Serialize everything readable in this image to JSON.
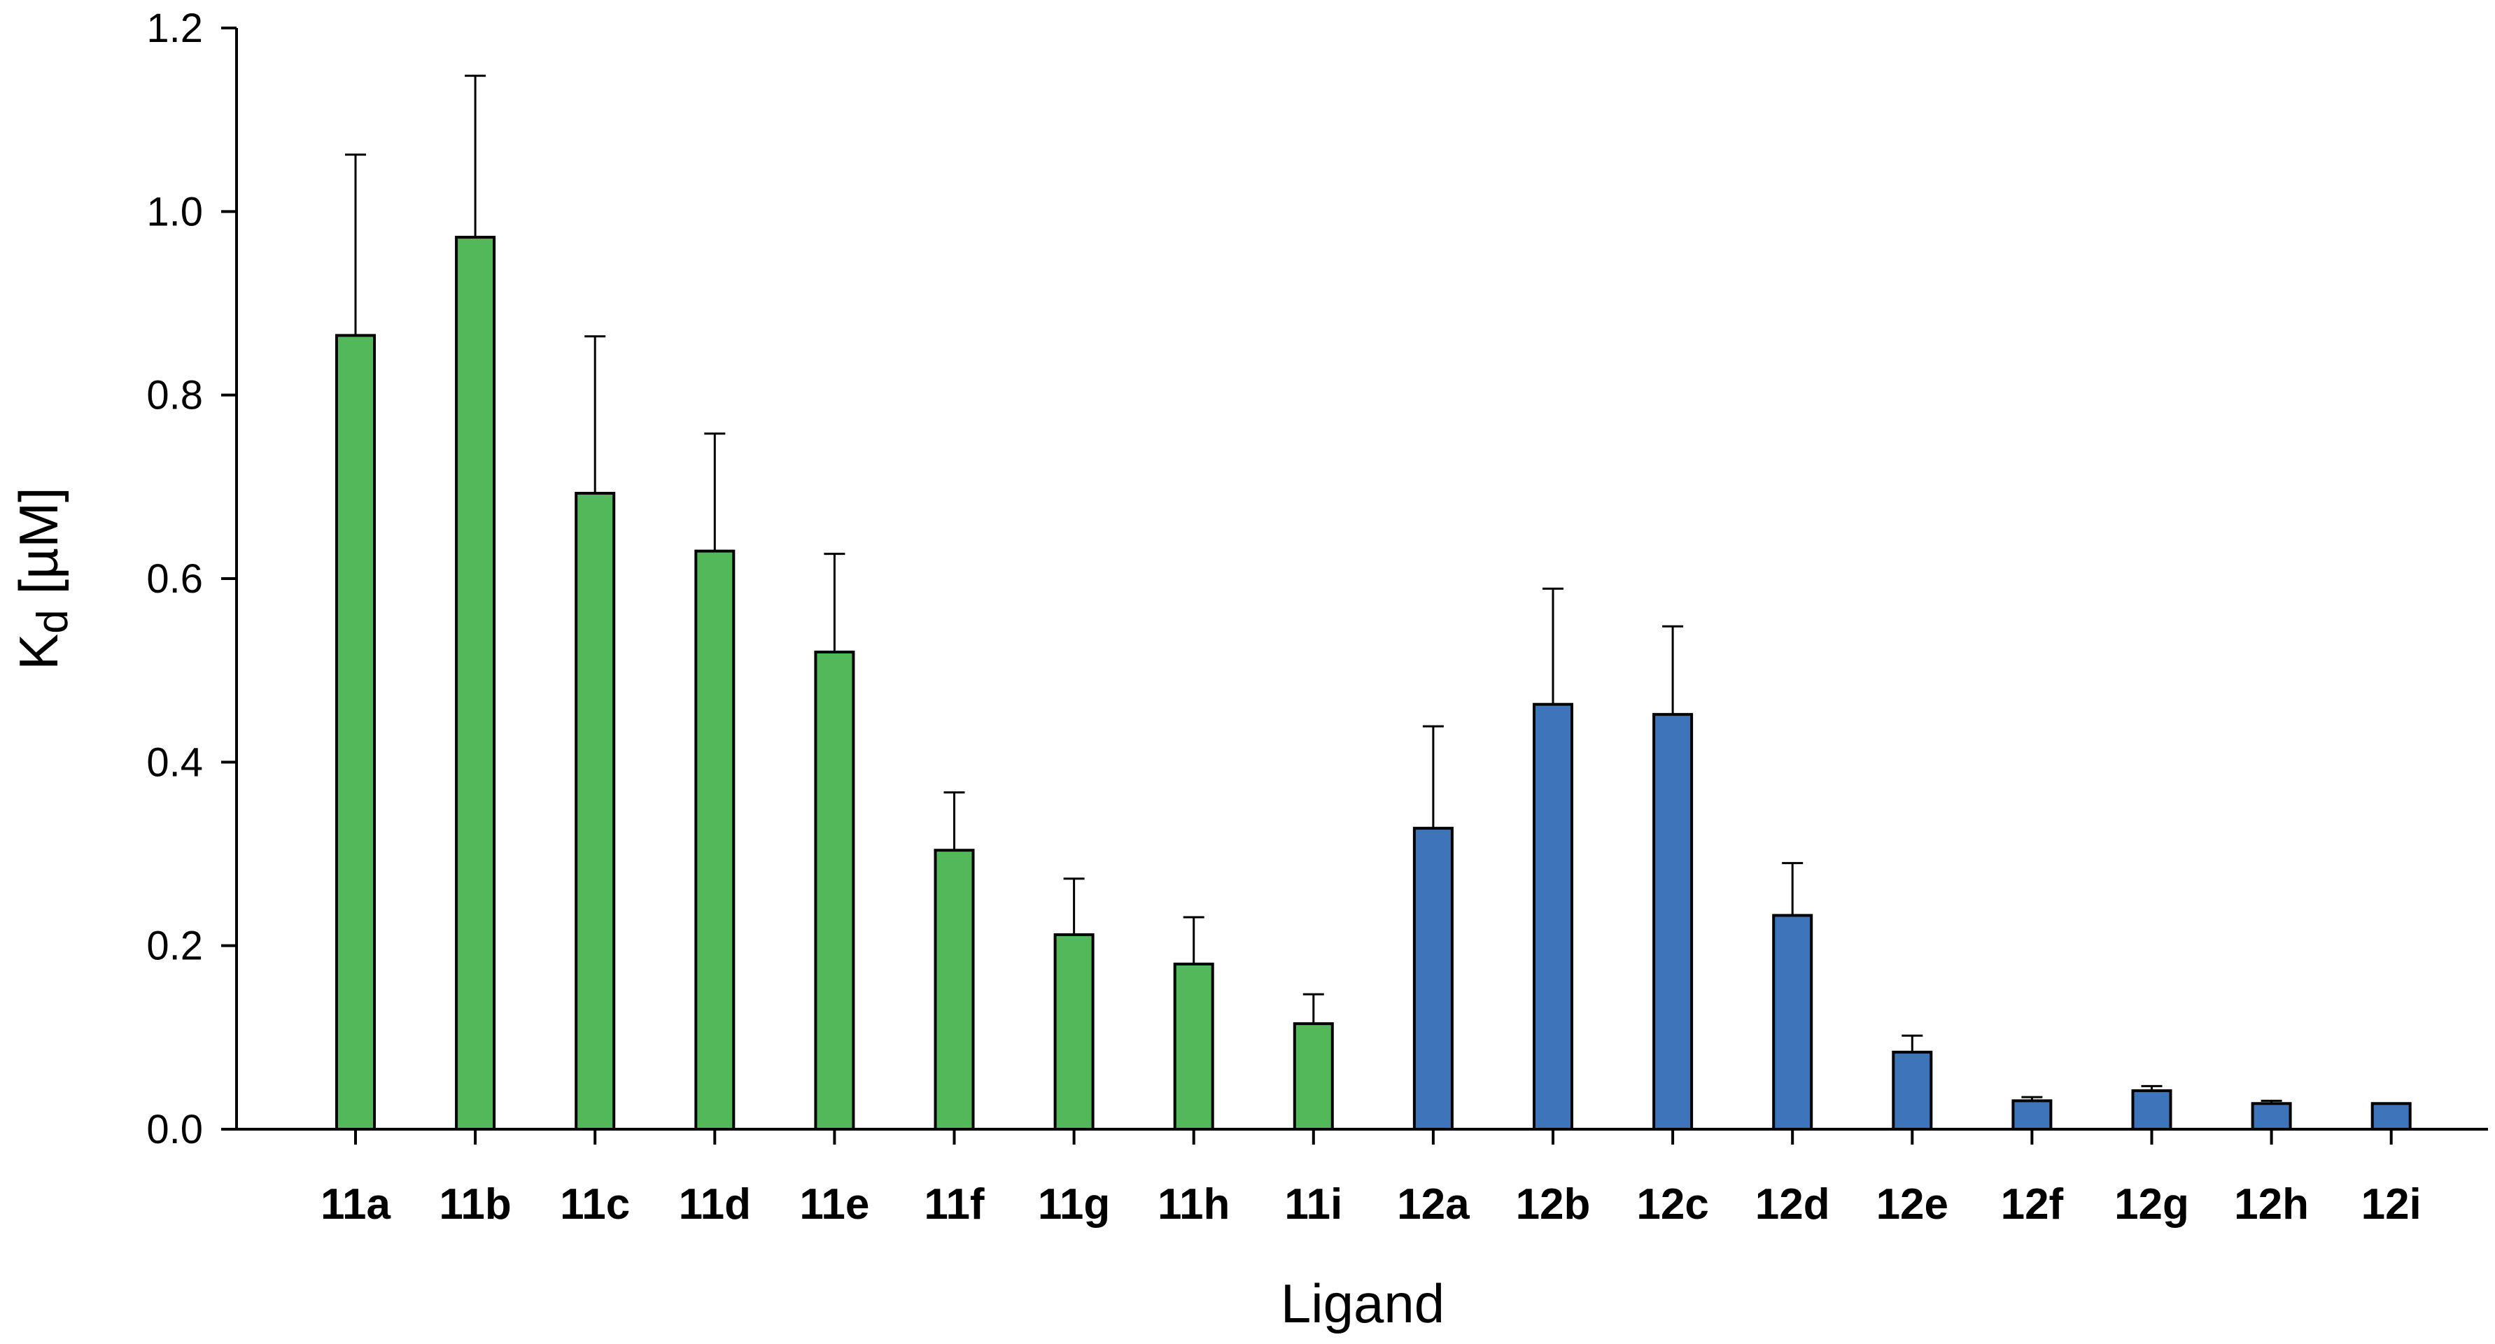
{
  "chart_data": {
    "type": "bar",
    "categories": [
      "11a",
      "11b",
      "11c",
      "11d",
      "11e",
      "11f",
      "11g",
      "11h",
      "11i",
      "12a",
      "12b",
      "12c",
      "12d",
      "12e",
      "12f",
      "12g",
      "12h",
      "12i"
    ],
    "values": [
      0.865,
      0.972,
      0.693,
      0.63,
      0.52,
      0.304,
      0.212,
      0.18,
      0.115,
      0.328,
      0.463,
      0.452,
      0.233,
      0.084,
      0.031,
      0.042,
      0.028,
      0.028
    ],
    "errors": [
      0.197,
      0.176,
      0.171,
      0.128,
      0.107,
      0.063,
      0.061,
      0.051,
      0.032,
      0.111,
      0.126,
      0.096,
      0.057,
      0.018,
      0.004,
      0.005,
      0.003,
      0.0
    ],
    "bar_colors": [
      "#52b85a",
      "#52b85a",
      "#52b85a",
      "#52b85a",
      "#52b85a",
      "#52b85a",
      "#52b85a",
      "#52b85a",
      "#52b85a",
      "#3e74ba",
      "#3e74ba",
      "#3e74ba",
      "#3e74ba",
      "#3e74ba",
      "#3e74ba",
      "#3e74ba",
      "#3e74ba",
      "#3e74ba"
    ],
    "xlabel": "Ligand",
    "ylabel_main": "K",
    "ylabel_sub": "d",
    "ylabel_unit": " [µM]",
    "ylim": [
      0,
      1.2
    ],
    "yticks": [
      "0.0",
      "0.2",
      "0.4",
      "0.6",
      "0.8",
      "1.0",
      "1.2"
    ],
    "ytick_values": [
      0,
      0.2,
      0.4,
      0.6,
      0.8,
      1.0,
      1.2
    ],
    "grid": false,
    "legend": "none"
  }
}
